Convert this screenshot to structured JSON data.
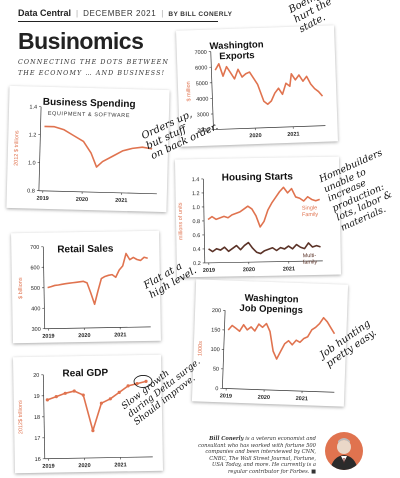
{
  "header": {
    "brand": "Data Central",
    "date": "DECEMBER 2021",
    "byline": "BY BILL CONERLY"
  },
  "page_title": "Businomics",
  "subtitle": "CONNECTING THE DOTS BETWEEN THE ECONOMY … AND BUSINESS!",
  "annotations": {
    "exports": "Boeing's problems\nhurt the\nstate.",
    "spending": "Orders up,\nbut stuff\non back order.",
    "housing": "Homebuilders\nunable to\nincrease\nproduction:\nlots, labor &\nmaterials.",
    "retail": "Flat at a\nhigh level.",
    "jobs": "Job hunting\npretty easy.",
    "gdp": "Slow growth\nduring Delta surge.\nShould improve."
  },
  "bio": {
    "name": "Bill Conerly",
    "text": " is a veteran economist and consultant who has worked with fortune 500 companies and been interviewed by CNN, CNBC, The Wall Street Journal, Fortune, USA Today, and more. He currently is a regular contributor for Forbes."
  },
  "colors": {
    "accent": "#e0734f",
    "dark": "#5b3328",
    "axis": "#333333"
  },
  "chart_data": [
    {
      "id": "exports",
      "type": "line",
      "title": "Washington\nExports",
      "ylabel": "$ million",
      "ylim": [
        2000,
        7000
      ],
      "yticks": [
        2000,
        3000,
        4000,
        5000,
        6000,
        7000
      ],
      "xlim": [
        2018.9,
        2021.85
      ],
      "xticks": [
        2020,
        2021
      ],
      "series": [
        {
          "values": [
            [
              2019.0,
              5800
            ],
            [
              2019.1,
              6200
            ],
            [
              2019.2,
              5400
            ],
            [
              2019.3,
              6000
            ],
            [
              2019.4,
              5600
            ],
            [
              2019.5,
              5200
            ],
            [
              2019.6,
              5800
            ],
            [
              2019.7,
              5300
            ],
            [
              2019.8,
              5500
            ],
            [
              2019.9,
              5600
            ],
            [
              2020.0,
              5200
            ],
            [
              2020.1,
              4800
            ],
            [
              2020.25,
              3700
            ],
            [
              2020.35,
              3500
            ],
            [
              2020.45,
              3700
            ],
            [
              2020.55,
              4200
            ],
            [
              2020.65,
              4500
            ],
            [
              2020.75,
              4100
            ],
            [
              2020.85,
              4800
            ],
            [
              2020.95,
              4600
            ],
            [
              2021.0,
              5400
            ],
            [
              2021.1,
              5000
            ],
            [
              2021.2,
              5300
            ],
            [
              2021.3,
              4900
            ],
            [
              2021.4,
              5200
            ],
            [
              2021.5,
              4700
            ],
            [
              2021.6,
              4400
            ],
            [
              2021.7,
              4200
            ],
            [
              2021.8,
              3900
            ]
          ]
        }
      ]
    },
    {
      "id": "spending",
      "type": "line",
      "title": "Business Spending",
      "subtitle": "EQUIPMENT & SOFTWARE",
      "ylabel": "2012 $ trillions",
      "ylim": [
        0.8,
        1.4
      ],
      "yticks": [
        0.8,
        1.0,
        1.2,
        1.4
      ],
      "yfmt": 1,
      "xlim": [
        2018.9,
        2021.9
      ],
      "xticks": [
        2019,
        2020,
        2021
      ],
      "series": [
        {
          "values": [
            [
              2019.0,
              1.26
            ],
            [
              2019.25,
              1.26
            ],
            [
              2019.5,
              1.24
            ],
            [
              2019.75,
              1.2
            ],
            [
              2020.0,
              1.16
            ],
            [
              2020.2,
              1.08
            ],
            [
              2020.35,
              0.98
            ],
            [
              2020.5,
              1.02
            ],
            [
              2020.75,
              1.06
            ],
            [
              2021.0,
              1.1
            ],
            [
              2021.25,
              1.12
            ],
            [
              2021.5,
              1.13
            ],
            [
              2021.75,
              1.12
            ]
          ]
        }
      ]
    },
    {
      "id": "housing",
      "type": "line",
      "title": "Housing Starts",
      "ylabel": "millions of units",
      "ylim": [
        0.2,
        1.4
      ],
      "yticks": [
        0.2,
        0.4,
        0.6,
        0.8,
        1.0,
        1.2,
        1.4
      ],
      "yfmt": 1,
      "xlim": [
        2018.9,
        2021.85
      ],
      "xticks": [
        2019,
        2020,
        2021
      ],
      "series": [
        {
          "name": "Single\nFamily",
          "values": [
            [
              2019.0,
              0.82
            ],
            [
              2019.1,
              0.86
            ],
            [
              2019.2,
              0.82
            ],
            [
              2019.3,
              0.84
            ],
            [
              2019.4,
              0.86
            ],
            [
              2019.5,
              0.84
            ],
            [
              2019.6,
              0.88
            ],
            [
              2019.7,
              0.9
            ],
            [
              2019.8,
              0.92
            ],
            [
              2019.9,
              0.96
            ],
            [
              2020.0,
              1.0
            ],
            [
              2020.1,
              0.96
            ],
            [
              2020.2,
              0.86
            ],
            [
              2020.3,
              0.7
            ],
            [
              2020.4,
              0.78
            ],
            [
              2020.5,
              0.94
            ],
            [
              2020.6,
              1.04
            ],
            [
              2020.7,
              1.12
            ],
            [
              2020.8,
              1.2
            ],
            [
              2020.9,
              1.26
            ],
            [
              2021.0,
              1.18
            ],
            [
              2021.1,
              1.24
            ],
            [
              2021.2,
              1.12
            ],
            [
              2021.3,
              1.1
            ],
            [
              2021.4,
              1.06
            ],
            [
              2021.5,
              1.12
            ],
            [
              2021.6,
              1.08
            ],
            [
              2021.7,
              1.06
            ],
            [
              2021.8,
              1.08
            ]
          ]
        },
        {
          "name": "Multi-\nfamily",
          "values": [
            [
              2019.0,
              0.4
            ],
            [
              2019.1,
              0.36
            ],
            [
              2019.2,
              0.4
            ],
            [
              2019.3,
              0.38
            ],
            [
              2019.4,
              0.42
            ],
            [
              2019.5,
              0.36
            ],
            [
              2019.6,
              0.4
            ],
            [
              2019.7,
              0.44
            ],
            [
              2019.8,
              0.38
            ],
            [
              2019.9,
              0.44
            ],
            [
              2020.0,
              0.48
            ],
            [
              2020.1,
              0.4
            ],
            [
              2020.2,
              0.34
            ],
            [
              2020.3,
              0.32
            ],
            [
              2020.4,
              0.36
            ],
            [
              2020.5,
              0.38
            ],
            [
              2020.6,
              0.4
            ],
            [
              2020.7,
              0.36
            ],
            [
              2020.8,
              0.4
            ],
            [
              2020.9,
              0.38
            ],
            [
              2021.0,
              0.42
            ],
            [
              2021.1,
              0.38
            ],
            [
              2021.2,
              0.44
            ],
            [
              2021.3,
              0.4
            ],
            [
              2021.4,
              0.38
            ],
            [
              2021.5,
              0.46
            ],
            [
              2021.6,
              0.4
            ],
            [
              2021.7,
              0.42
            ],
            [
              2021.8,
              0.4
            ]
          ]
        }
      ]
    },
    {
      "id": "retail",
      "type": "line",
      "title": "Retail Sales",
      "ylabel": "$ billions",
      "ylim": [
        300,
        700
      ],
      "yticks": [
        300,
        400,
        500,
        600,
        700
      ],
      "xlim": [
        2018.9,
        2021.85
      ],
      "xticks": [
        2019,
        2020,
        2021
      ],
      "series": [
        {
          "values": [
            [
              2019.0,
              500
            ],
            [
              2019.1,
              505
            ],
            [
              2019.2,
              510
            ],
            [
              2019.3,
              512
            ],
            [
              2019.4,
              515
            ],
            [
              2019.5,
              518
            ],
            [
              2019.6,
              520
            ],
            [
              2019.7,
              522
            ],
            [
              2019.8,
              524
            ],
            [
              2019.9,
              526
            ],
            [
              2020.0,
              528
            ],
            [
              2020.1,
              520
            ],
            [
              2020.2,
              470
            ],
            [
              2020.3,
              415
            ],
            [
              2020.4,
              480
            ],
            [
              2020.5,
              540
            ],
            [
              2020.6,
              550
            ],
            [
              2020.7,
              555
            ],
            [
              2020.8,
              558
            ],
            [
              2020.9,
              545
            ],
            [
              2021.0,
              580
            ],
            [
              2021.1,
              600
            ],
            [
              2021.2,
              660
            ],
            [
              2021.3,
              630
            ],
            [
              2021.4,
              640
            ],
            [
              2021.5,
              630
            ],
            [
              2021.6,
              625
            ],
            [
              2021.7,
              640
            ],
            [
              2021.8,
              635
            ]
          ]
        }
      ]
    },
    {
      "id": "jobs",
      "type": "line",
      "title": "Washington\nJob Openings",
      "ylabel": "1000s",
      "ylim": [
        0,
        200
      ],
      "yticks": [
        0,
        50,
        100,
        150,
        200
      ],
      "xlim": [
        2018.9,
        2021.85
      ],
      "xticks": [
        2019,
        2020,
        2021
      ],
      "series": [
        {
          "values": [
            [
              2019.0,
              150
            ],
            [
              2019.1,
              162
            ],
            [
              2019.2,
              155
            ],
            [
              2019.3,
              148
            ],
            [
              2019.4,
              165
            ],
            [
              2019.5,
              152
            ],
            [
              2019.6,
              160
            ],
            [
              2019.7,
              150
            ],
            [
              2019.8,
              168
            ],
            [
              2019.9,
              160
            ],
            [
              2020.0,
              170
            ],
            [
              2020.1,
              150
            ],
            [
              2020.2,
              100
            ],
            [
              2020.3,
              80
            ],
            [
              2020.4,
              100
            ],
            [
              2020.5,
              120
            ],
            [
              2020.6,
              128
            ],
            [
              2020.7,
              118
            ],
            [
              2020.8,
              130
            ],
            [
              2020.9,
              125
            ],
            [
              2021.0,
              135
            ],
            [
              2021.1,
              140
            ],
            [
              2021.2,
              158
            ],
            [
              2021.3,
              165
            ],
            [
              2021.4,
              175
            ],
            [
              2021.5,
              190
            ],
            [
              2021.6,
              180
            ],
            [
              2021.7,
              165
            ],
            [
              2021.8,
              150
            ]
          ]
        }
      ]
    },
    {
      "id": "gdp",
      "type": "line",
      "title": "Real GDP",
      "ylabel": "2012$ trillions",
      "ylim": [
        16,
        20
      ],
      "yticks": [
        16,
        17,
        18,
        19,
        20
      ],
      "xlim": [
        2018.9,
        2021.9
      ],
      "xticks": [
        2019,
        2020,
        2021
      ],
      "series": [
        {
          "values": [
            [
              2019.0,
              18.8
            ],
            [
              2019.25,
              18.95
            ],
            [
              2019.5,
              19.1
            ],
            [
              2019.75,
              19.2
            ],
            [
              2020.0,
              19.0
            ],
            [
              2020.25,
              17.3
            ],
            [
              2020.5,
              18.6
            ],
            [
              2020.75,
              18.8
            ],
            [
              2021.0,
              19.1
            ],
            [
              2021.25,
              19.4
            ],
            [
              2021.5,
              19.5
            ],
            [
              2021.75,
              19.6
            ]
          ]
        }
      ]
    }
  ]
}
